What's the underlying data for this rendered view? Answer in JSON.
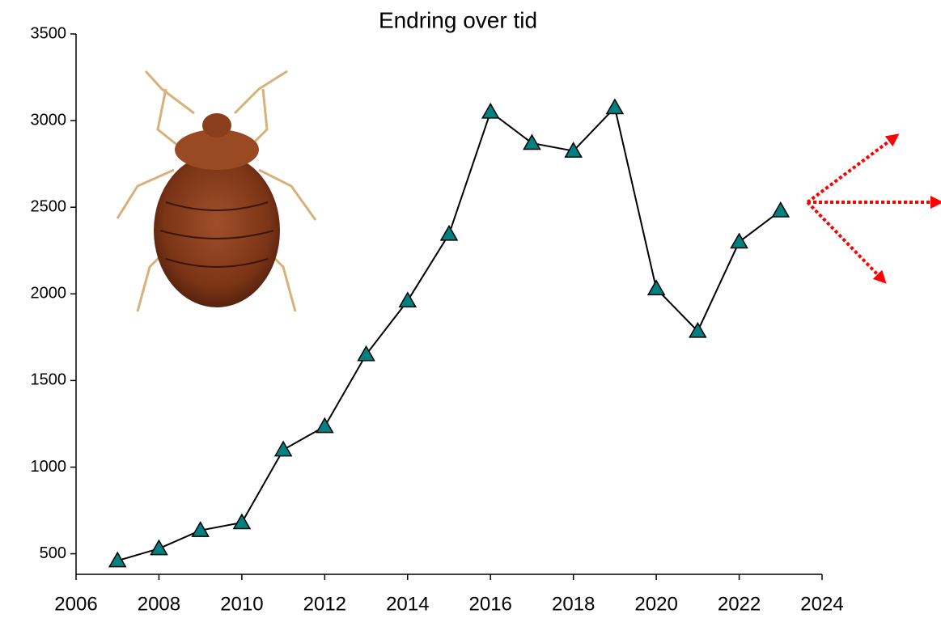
{
  "chart_data": {
    "type": "line",
    "title": "Endring over tid",
    "x": [
      2007,
      2008,
      2009,
      2010,
      2011,
      2012,
      2013,
      2014,
      2015,
      2016,
      2017,
      2018,
      2019,
      2020,
      2021,
      2022,
      2023
    ],
    "series": [
      {
        "color": "#008080",
        "line_color": "#000000",
        "marker": "triangle",
        "values": [
          460,
          530,
          635,
          680,
          1100,
          1235,
          1650,
          1960,
          2345,
          3050,
          2870,
          2825,
          3075,
          2030,
          1785,
          2300,
          2480
        ]
      }
    ],
    "xlim": [
      2006,
      2024
    ],
    "xticks": [
      2006,
      2008,
      2010,
      2012,
      2014,
      2016,
      2018,
      2020,
      2022,
      2024
    ],
    "ylim": [
      400,
      3500
    ],
    "yticks": [
      500,
      1000,
      1500,
      2000,
      2500,
      3000,
      3500
    ],
    "grid": false
  }
}
